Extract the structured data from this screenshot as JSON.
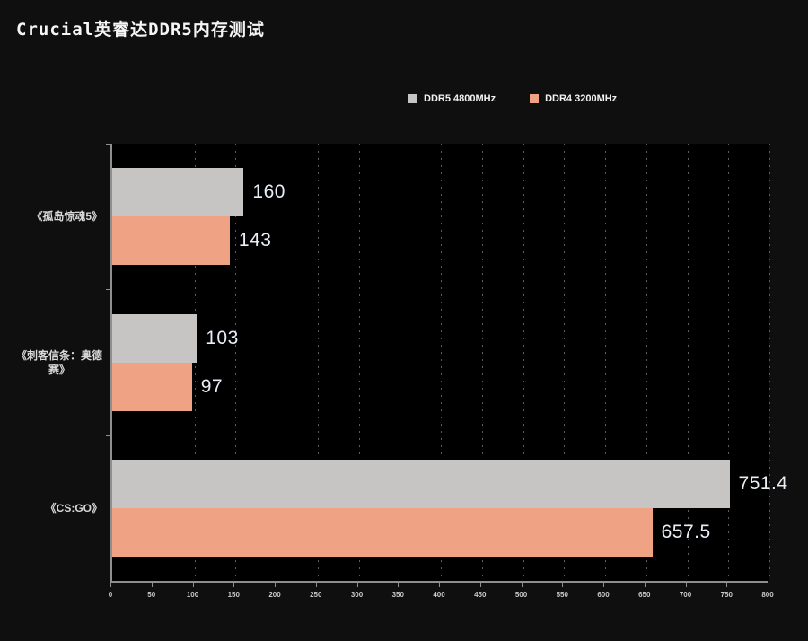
{
  "title": "Crucial英睿达DDR5内存测试",
  "chart_data": {
    "type": "bar",
    "orientation": "horizontal",
    "title": "Crucial英睿达DDR5内存测试",
    "categories": [
      "《孤岛惊魂5》",
      "《刺客信条：奥德\n赛》",
      "《CS:GO》"
    ],
    "series": [
      {
        "name": "DDR5 4800MHz",
        "color": "#c6c5c3",
        "values": [
          160,
          103,
          751.4
        ]
      },
      {
        "name": "DDR4 3200MHz",
        "color": "#f0a285",
        "values": [
          143,
          97,
          657.5
        ]
      }
    ],
    "xlabel": "",
    "ylabel": "",
    "xlim": [
      0,
      800
    ],
    "x_ticks": [
      0,
      50,
      100,
      150,
      200,
      250,
      300,
      350,
      400,
      450,
      500,
      550,
      600,
      650,
      700,
      750,
      800
    ],
    "grid": "dotted-vertical",
    "legend_position": "top-center",
    "value_labels": true,
    "colors": {
      "background": "#0f0f0f",
      "plot_background": "#000000",
      "gridline": "#5c5c5c",
      "axis": "#8f8f8f",
      "title_text": "#f5f5f5",
      "value_text": "#e9edf4",
      "category_text": "#d9d9d9",
      "tick_text": "#c9c9c9"
    }
  }
}
